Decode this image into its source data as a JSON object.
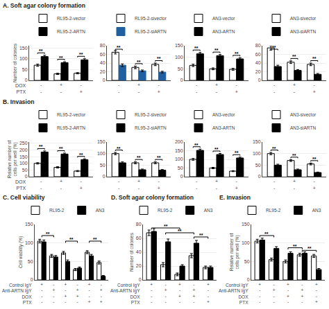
{
  "chart_data": [
    {
      "type": "bar",
      "title": "A. Soft agar colony formation",
      "ylabel": "Number of colonies",
      "categories": [
        "-\n-",
        "+\n-",
        "-\n+"
      ],
      "row_labels": [
        "DOX",
        "PTX"
      ],
      "series": [
        {
          "name": "RL95-2-vector",
          "color": "white",
          "values": [
            70,
            30,
            33
          ],
          "errors": [
            5,
            3,
            3
          ]
        },
        {
          "name": "RL95-2-ARTN",
          "color": "black",
          "values": [
            110,
            82,
            95
          ],
          "errors": [
            6,
            4,
            5
          ]
        }
      ],
      "ylim": [
        0,
        160
      ],
      "yticks": [
        0,
        50,
        100,
        150
      ],
      "grid": true,
      "legend": "above",
      "annotations": [
        {
          "text": "**",
          "group": 0
        },
        {
          "text": "**",
          "group": 1
        },
        {
          "text": "**",
          "group": 2
        }
      ]
    },
    {
      "type": "bar",
      "categories": [
        "-\n-",
        "+\n-",
        "-\n+"
      ],
      "series": [
        {
          "name": "RL95-2-sivector",
          "color": "white",
          "values": [
            65,
            30,
            37
          ],
          "errors": [
            4,
            3,
            3
          ]
        },
        {
          "name": "RL95-2-siARTN",
          "color": "#2060a0",
          "values": [
            35,
            22,
            19
          ],
          "errors": [
            3,
            2,
            2
          ]
        }
      ],
      "ylim": [
        0,
        80
      ],
      "yticks": [
        0,
        20,
        40,
        60,
        80
      ],
      "grid": true,
      "legend": "above",
      "annotations": [
        {
          "text": "**",
          "group": 0
        },
        {
          "text": "**",
          "group": 1
        },
        {
          "text": "**",
          "group": 2
        }
      ]
    },
    {
      "type": "bar",
      "categories": [
        "-\n-",
        "+\n-",
        "-\n+"
      ],
      "series": [
        {
          "name": "AN3-vector",
          "color": "white",
          "values": [
            65,
            50,
            48
          ],
          "errors": [
            5,
            4,
            4
          ]
        },
        {
          "name": "AN3-ARTN",
          "color": "black",
          "values": [
            115,
            107,
            93
          ],
          "errors": [
            6,
            5,
            5
          ]
        }
      ],
      "ylim": [
        0,
        150
      ],
      "yticks": [
        0,
        50,
        100,
        150
      ],
      "grid": true,
      "legend": "above",
      "annotations": [
        {
          "text": "**",
          "group": 0
        },
        {
          "text": "**",
          "group": 1
        },
        {
          "text": "**",
          "group": 2
        }
      ]
    },
    {
      "type": "bar",
      "categories": [
        "-\n-",
        "+\n-",
        "-\n+"
      ],
      "series": [
        {
          "name": "AN3-sivector",
          "color": "white",
          "values": [
            75,
            42,
            37
          ],
          "errors": [
            5,
            3,
            3
          ]
        },
        {
          "name": "AN3-siARTN",
          "color": "black",
          "values": [
            32,
            23,
            14
          ],
          "errors": [
            3,
            2,
            2
          ]
        }
      ],
      "ylim": [
        0,
        80
      ],
      "yticks": [
        0,
        20,
        40,
        60,
        80
      ],
      "grid": true,
      "legend": "above",
      "annotations": [
        {
          "text": "**",
          "group": 0
        },
        {
          "text": "**",
          "group": 1
        },
        {
          "text": "**",
          "group": 2
        }
      ]
    },
    {
      "type": "bar",
      "title": "B. Invasion",
      "ylabel": "Relative number of\ncells per well (%)",
      "categories": [
        "-\n-",
        "+\n-",
        "-\n+"
      ],
      "row_labels": [
        "DOX",
        "PTX"
      ],
      "series": [
        {
          "name": "RL95-2-vector",
          "color": "white",
          "values": [
            100,
            70,
            42
          ],
          "errors": [
            5,
            5,
            4
          ]
        },
        {
          "name": "RL95-2-ARTN",
          "color": "black",
          "values": [
            185,
            170,
            128
          ],
          "errors": [
            8,
            7,
            6
          ]
        }
      ],
      "ylim": [
        0,
        260
      ],
      "yticks": [
        0,
        50,
        100,
        150,
        200,
        250
      ],
      "grid": true,
      "legend": "above",
      "annotations": [
        {
          "text": "**",
          "group": 0
        },
        {
          "text": "**",
          "group": 1
        },
        {
          "text": "**",
          "group": 2
        }
      ]
    },
    {
      "type": "bar",
      "categories": [
        "-\n-",
        "+\n-",
        "-\n+"
      ],
      "series": [
        {
          "name": "RL95-2-sivector",
          "color": "white",
          "values": [
            100,
            60,
            60
          ],
          "errors": [
            5,
            4,
            4
          ]
        },
        {
          "name": "RL95-2-siARTN",
          "color": "black",
          "values": [
            60,
            30,
            28
          ],
          "errors": [
            4,
            3,
            3
          ]
        }
      ],
      "ylim": [
        0,
        150
      ],
      "yticks": [
        0,
        50,
        100,
        150
      ],
      "grid": true,
      "legend": "above",
      "annotations": [
        {
          "text": "**",
          "group": 0
        },
        {
          "text": "**",
          "group": 1
        },
        {
          "text": "**",
          "group": 2
        }
      ]
    },
    {
      "type": "bar",
      "categories": [
        "-\n-",
        "+\n-",
        "-\n+"
      ],
      "series": [
        {
          "name": "AN3-vector",
          "color": "white",
          "values": [
            100,
            50,
            32
          ],
          "errors": [
            5,
            4,
            3
          ]
        },
        {
          "name": "AN3-ARTN",
          "color": "black",
          "values": [
            152,
            128,
            108
          ],
          "errors": [
            7,
            6,
            5
          ]
        }
      ],
      "ylim": [
        0,
        200
      ],
      "yticks": [
        0,
        50,
        100,
        150,
        200
      ],
      "grid": true,
      "legend": "above",
      "annotations": [
        {
          "text": "**",
          "group": 0
        },
        {
          "text": "**",
          "group": 1
        },
        {
          "text": "**",
          "group": 2
        }
      ]
    },
    {
      "type": "bar",
      "categories": [
        "-\n-",
        "+\n-",
        "-\n+"
      ],
      "series": [
        {
          "name": "AN3-sivector",
          "color": "white",
          "values": [
            100,
            70,
            55
          ],
          "errors": [
            5,
            4,
            4
          ]
        },
        {
          "name": "AN3-siARTN",
          "color": "black",
          "values": [
            50,
            30,
            18
          ],
          "errors": [
            4,
            3,
            2
          ]
        }
      ],
      "ylim": [
        0,
        150
      ],
      "yticks": [
        0,
        50,
        100,
        150
      ],
      "grid": true,
      "legend": "above",
      "annotations": [
        {
          "text": "**",
          "group": 0
        },
        {
          "text": "**",
          "group": 1
        },
        {
          "text": "**",
          "group": 2
        }
      ]
    },
    {
      "type": "bar",
      "title": "C. Cell viability",
      "ylabel": "Cell viability (%)",
      "categories": [
        "+\n-\n-\n-",
        "-\n+\n-\n-",
        "+\n-\n+\n-",
        "-\n+\n+\n-",
        "+\n-\n-\n+",
        "-\n+\n-\n+"
      ],
      "row_labels": [
        "Control IgY",
        "Anti-ARTN IgY",
        "DOX",
        "PTX"
      ],
      "series": [
        {
          "name": "RL95-2",
          "color": "white",
          "values": [
            105,
            65,
            73,
            28,
            75,
            47
          ],
          "errors": [
            5,
            4,
            4,
            3,
            4,
            4
          ]
        },
        {
          "name": "AN3",
          "color": "black",
          "values": [
            103,
            62,
            50,
            32,
            65,
            10
          ],
          "errors": [
            5,
            4,
            4,
            3,
            4,
            2
          ]
        }
      ],
      "ylim": [
        0,
        150
      ],
      "yticks": [
        0,
        50,
        100,
        150
      ],
      "grid": true,
      "legend": "above",
      "annotations": [
        {
          "text": "**",
          "groups": [
            0,
            1
          ],
          "y": 120
        },
        {
          "text": "**",
          "groups": [
            2,
            3
          ],
          "y": 105
        },
        {
          "text": "**",
          "groups": [
            4,
            5
          ],
          "y": 105
        }
      ]
    },
    {
      "type": "bar",
      "title": "D. Soft agar colony formation",
      "ylabel": "Number of colonies",
      "categories": [
        "+\n-\n-\n-",
        "-\n+\n-\n-",
        "+\n-\n+\n-",
        "-\n+\n+\n-",
        "+\n-\n-\n+"
      ],
      "row_labels": [
        "Control IgY",
        "Anti-ARTN IgY",
        "DOX",
        "PTX"
      ],
      "series": [
        {
          "name": "RL95-2",
          "color": "white",
          "values": [
            68,
            22,
            8,
            35,
            18
          ],
          "errors": [
            4,
            3,
            2,
            3,
            2
          ]
        },
        {
          "name": "AN3",
          "color": "black",
          "values": [
            70,
            55,
            20,
            53,
            18
          ],
          "errors": [
            4,
            4,
            2,
            4,
            2
          ]
        }
      ],
      "ylim": [
        0,
        80
      ],
      "yticks": [
        0,
        20,
        40,
        60,
        80
      ],
      "grid": true,
      "legend": "above",
      "annotations": [
        {
          "text": "**",
          "groups": [
            0,
            2
          ],
          "y": 75
        },
        {
          "text": "**",
          "groups": [
            1,
            3
          ],
          "y": 68
        },
        {
          "text": "**",
          "groups": [
            3,
            4
          ],
          "y": 62
        }
      ]
    },
    {
      "type": "bar",
      "title": "E. Invasion",
      "ylabel": "Relative number of\ncells per well (%)",
      "categories": [
        "+\n-\n-\n-",
        "-\n+\n-\n-",
        "+\n-\n+\n-",
        "-\n+\n+\n-",
        "+\n-\n-\n+"
      ],
      "row_labels": [
        "Control IgY",
        "Anti-ARTN IgY",
        "DOX",
        "PTX"
      ],
      "series": [
        {
          "name": "RL95-2",
          "color": "white",
          "values": [
            105,
            55,
            50,
            68,
            65
          ],
          "errors": [
            5,
            4,
            4,
            4,
            4
          ]
        },
        {
          "name": "AN3",
          "color": "black",
          "values": [
            108,
            85,
            72,
            72,
            28
          ],
          "errors": [
            5,
            5,
            4,
            4,
            3
          ]
        }
      ],
      "ylim": [
        0,
        150
      ],
      "yticks": [
        0,
        50,
        100,
        150
      ],
      "grid": true,
      "legend": "above",
      "annotations": [
        {
          "text": "**",
          "groups": [
            0,
            1
          ],
          "y": 120
        },
        {
          "text": "**",
          "groups": [
            2,
            3
          ],
          "y": 87
        },
        {
          "text": "**",
          "groups": [
            3,
            4
          ],
          "y": 80
        }
      ]
    }
  ]
}
